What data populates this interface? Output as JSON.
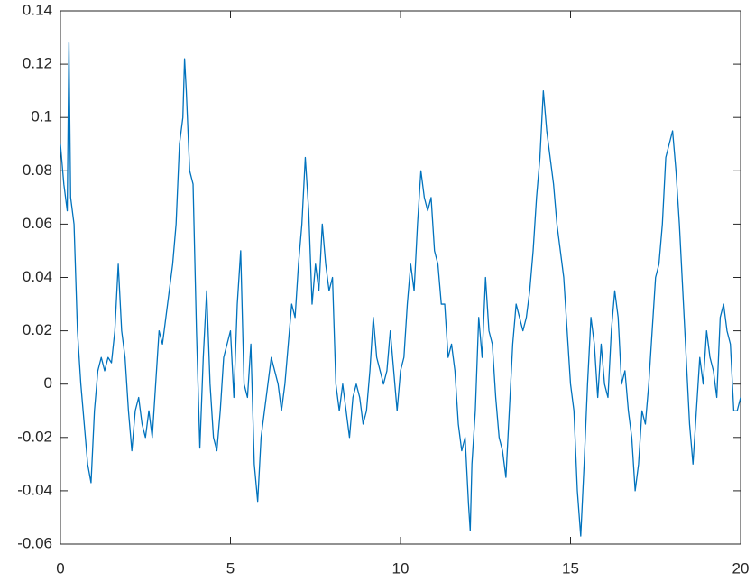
{
  "chart_data": {
    "type": "line",
    "x": [
      0,
      0.1,
      0.2,
      0.25,
      0.3,
      0.4,
      0.5,
      0.6,
      0.7,
      0.8,
      0.9,
      1.0,
      1.1,
      1.2,
      1.3,
      1.4,
      1.5,
      1.6,
      1.7,
      1.8,
      1.9,
      2.0,
      2.1,
      2.2,
      2.3,
      2.4,
      2.5,
      2.6,
      2.7,
      2.8,
      2.9,
      3.0,
      3.1,
      3.2,
      3.3,
      3.4,
      3.5,
      3.6,
      3.65,
      3.7,
      3.8,
      3.9,
      4.0,
      4.1,
      4.2,
      4.3,
      4.4,
      4.5,
      4.6,
      4.7,
      4.8,
      4.9,
      5.0,
      5.1,
      5.2,
      5.3,
      5.4,
      5.5,
      5.6,
      5.7,
      5.8,
      5.9,
      6.0,
      6.1,
      6.2,
      6.3,
      6.4,
      6.5,
      6.6,
      6.7,
      6.8,
      6.9,
      7.0,
      7.1,
      7.2,
      7.3,
      7.4,
      7.5,
      7.6,
      7.7,
      7.8,
      7.9,
      8.0,
      8.1,
      8.2,
      8.3,
      8.4,
      8.5,
      8.6,
      8.7,
      8.8,
      8.9,
      9.0,
      9.1,
      9.2,
      9.3,
      9.4,
      9.5,
      9.6,
      9.7,
      9.8,
      9.9,
      10.0,
      10.1,
      10.2,
      10.3,
      10.4,
      10.5,
      10.6,
      10.7,
      10.8,
      10.9,
      11.0,
      11.1,
      11.2,
      11.3,
      11.4,
      11.5,
      11.6,
      11.7,
      11.8,
      11.9,
      12.0,
      12.05,
      12.1,
      12.2,
      12.3,
      12.4,
      12.5,
      12.6,
      12.7,
      12.8,
      12.9,
      13.0,
      13.1,
      13.2,
      13.3,
      13.4,
      13.5,
      13.6,
      13.7,
      13.8,
      13.9,
      14.0,
      14.1,
      14.2,
      14.3,
      14.4,
      14.5,
      14.6,
      14.7,
      14.8,
      14.9,
      15.0,
      15.1,
      15.2,
      15.3,
      15.4,
      15.5,
      15.6,
      15.7,
      15.8,
      15.9,
      16.0,
      16.1,
      16.2,
      16.3,
      16.4,
      16.5,
      16.6,
      16.7,
      16.8,
      16.9,
      17.0,
      17.1,
      17.2,
      17.3,
      17.4,
      17.5,
      17.6,
      17.7,
      17.8,
      17.9,
      18.0,
      18.1,
      18.2,
      18.3,
      18.4,
      18.5,
      18.6,
      18.7,
      18.8,
      18.9,
      19.0,
      19.1,
      19.2,
      19.3,
      19.4,
      19.5,
      19.6,
      19.7,
      19.8,
      19.9,
      20.0
    ],
    "series": [
      {
        "color": "#0072bd",
        "values": [
          0.09,
          0.075,
          0.065,
          0.128,
          0.07,
          0.06,
          0.02,
          0.0,
          -0.015,
          -0.03,
          -0.037,
          -0.01,
          0.005,
          0.01,
          0.005,
          0.01,
          0.008,
          0.02,
          0.045,
          0.02,
          0.01,
          -0.01,
          -0.025,
          -0.01,
          -0.005,
          -0.015,
          -0.02,
          -0.01,
          -0.02,
          0.0,
          0.02,
          0.015,
          0.025,
          0.035,
          0.045,
          0.06,
          0.09,
          0.1,
          0.122,
          0.11,
          0.08,
          0.075,
          0.02,
          -0.024,
          0.01,
          0.035,
          0.0,
          -0.02,
          -0.025,
          -0.01,
          0.01,
          0.015,
          0.02,
          -0.005,
          0.03,
          0.05,
          0.0,
          -0.005,
          0.015,
          -0.03,
          -0.044,
          -0.02,
          -0.01,
          0.0,
          0.01,
          0.005,
          0.0,
          -0.01,
          0.0,
          0.015,
          0.03,
          0.025,
          0.045,
          0.06,
          0.085,
          0.065,
          0.03,
          0.045,
          0.035,
          0.06,
          0.045,
          0.035,
          0.04,
          0.0,
          -0.01,
          0.0,
          -0.01,
          -0.02,
          -0.005,
          0.0,
          -0.005,
          -0.015,
          -0.01,
          0.005,
          0.025,
          0.01,
          0.005,
          0.0,
          0.005,
          0.02,
          0.005,
          -0.01,
          0.005,
          0.01,
          0.03,
          0.045,
          0.035,
          0.06,
          0.08,
          0.07,
          0.065,
          0.07,
          0.05,
          0.045,
          0.03,
          0.03,
          0.01,
          0.015,
          0.005,
          -0.015,
          -0.025,
          -0.02,
          -0.045,
          -0.055,
          -0.03,
          -0.01,
          0.025,
          0.01,
          0.04,
          0.02,
          0.015,
          -0.005,
          -0.02,
          -0.025,
          -0.035,
          -0.01,
          0.015,
          0.03,
          0.025,
          0.02,
          0.025,
          0.035,
          0.05,
          0.07,
          0.085,
          0.11,
          0.095,
          0.085,
          0.075,
          0.06,
          0.05,
          0.04,
          0.02,
          0.0,
          -0.01,
          -0.04,
          -0.057,
          -0.03,
          0.0,
          0.025,
          0.015,
          -0.005,
          0.015,
          0.0,
          -0.005,
          0.02,
          0.035,
          0.025,
          0.0,
          0.005,
          -0.01,
          -0.02,
          -0.04,
          -0.03,
          -0.01,
          -0.015,
          0.0,
          0.02,
          0.04,
          0.045,
          0.06,
          0.085,
          0.09,
          0.095,
          0.08,
          0.06,
          0.035,
          0.01,
          -0.015,
          -0.03,
          -0.01,
          0.01,
          0.0,
          0.02,
          0.01,
          0.005,
          -0.005,
          0.025,
          0.03,
          0.02,
          0.015,
          -0.01,
          -0.01,
          -0.005
        ]
      }
    ],
    "xlim": [
      0,
      20
    ],
    "xticks": [
      0,
      5,
      10,
      15,
      20
    ],
    "ylim": [
      -0.06,
      0.14
    ],
    "yticks": [
      -0.06,
      -0.04,
      -0.02,
      0,
      0.02,
      0.04,
      0.06,
      0.08,
      0.1,
      0.12,
      0.14
    ],
    "grid": false
  }
}
